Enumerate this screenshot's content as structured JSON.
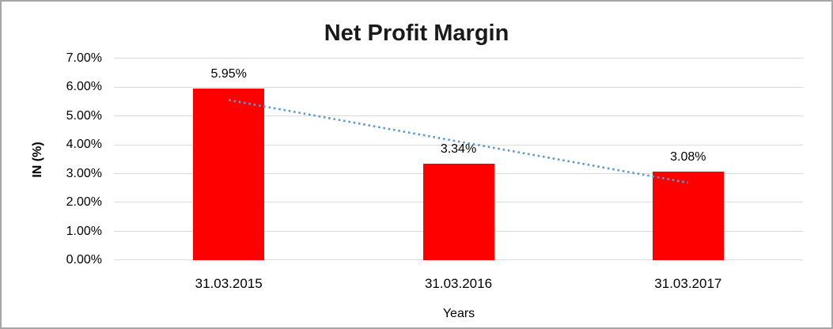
{
  "chart_data": {
    "type": "bar",
    "title": "Net Profit Margin",
    "categories": [
      "31.03.2015",
      "31.03.2016",
      "31.03.2017"
    ],
    "values": [
      5.95,
      3.34,
      3.08
    ],
    "data_labels": [
      "5.95%",
      "3.34%",
      "3.08%"
    ],
    "xlabel": "Years",
    "ylabel": "IN (%)",
    "ylim": [
      0,
      7
    ],
    "y_tick_step": 1,
    "y_tick_labels": [
      "0.00%",
      "1.00%",
      "2.00%",
      "3.00%",
      "4.00%",
      "5.00%",
      "6.00%",
      "7.00%"
    ],
    "grid": true,
    "legend": false,
    "bar_color": "#ff0000",
    "title_color": "#1a1a1a",
    "gridline_color": "#d9d9d9",
    "trendline": {
      "type": "linear",
      "style": "dotted",
      "color": "#5b9bd5",
      "values": [
        5.56,
        4.12,
        2.69
      ]
    }
  }
}
